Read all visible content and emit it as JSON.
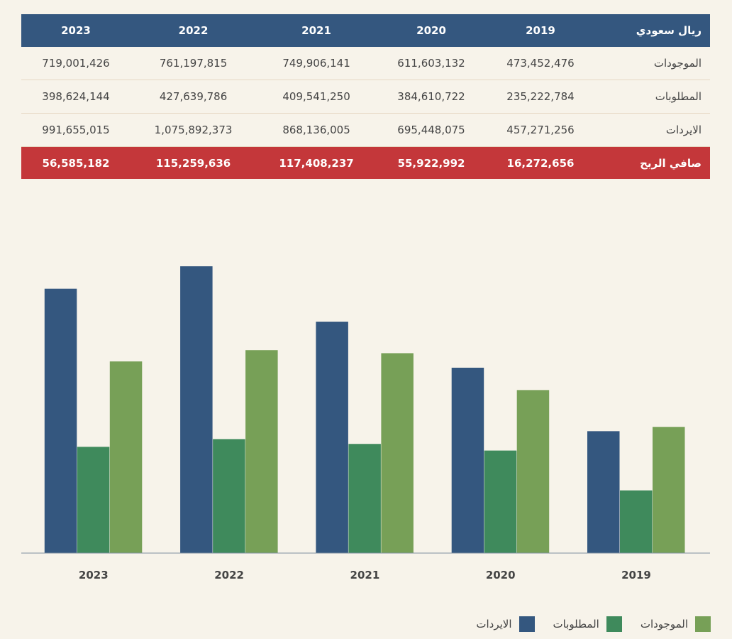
{
  "table": {
    "corner": "ريال سعودي",
    "years": [
      "2019",
      "2020",
      "2021",
      "2022",
      "2023"
    ],
    "rows": [
      {
        "label": "الموجودات",
        "values": [
          "473,452,476",
          "611,603,132",
          "749,906,141",
          "761,197,815",
          "719,001,426"
        ]
      },
      {
        "label": "المطلوبات",
        "values": [
          "235,222,784",
          "384,610,722",
          "409,541,250",
          "427,639,786",
          "398,624,144"
        ]
      },
      {
        "label": "الايردات",
        "values": [
          "457,271,256",
          "695,448,075",
          "868,136,005",
          "1,075,892,373",
          "991,655,015"
        ]
      }
    ],
    "profit": {
      "label": "صافي الربح",
      "values": [
        "16,272,656",
        "55,922,992",
        "117,408,237",
        "115,259,636",
        "56,585,182"
      ]
    }
  },
  "chart_data": {
    "type": "bar",
    "categories": [
      "2019",
      "2020",
      "2021",
      "2022",
      "2023"
    ],
    "series": [
      {
        "name": "الايردات",
        "color": "#34577f",
        "values": [
          457271256,
          695448075,
          868136005,
          1075892373,
          991655015
        ]
      },
      {
        "name": "المطلوبات",
        "color": "#3f8a5c",
        "values": [
          235222784,
          384610722,
          409541250,
          427639786,
          398624144
        ]
      },
      {
        "name": "الموجودات",
        "color": "#77a057",
        "values": [
          473452476,
          611603132,
          749906141,
          761197815,
          719001426
        ]
      }
    ],
    "ylim": [
      0,
      1100000000
    ],
    "grid": false,
    "legend": "bottom-right",
    "colors": {
      "axis": "#7f8fa0"
    }
  }
}
